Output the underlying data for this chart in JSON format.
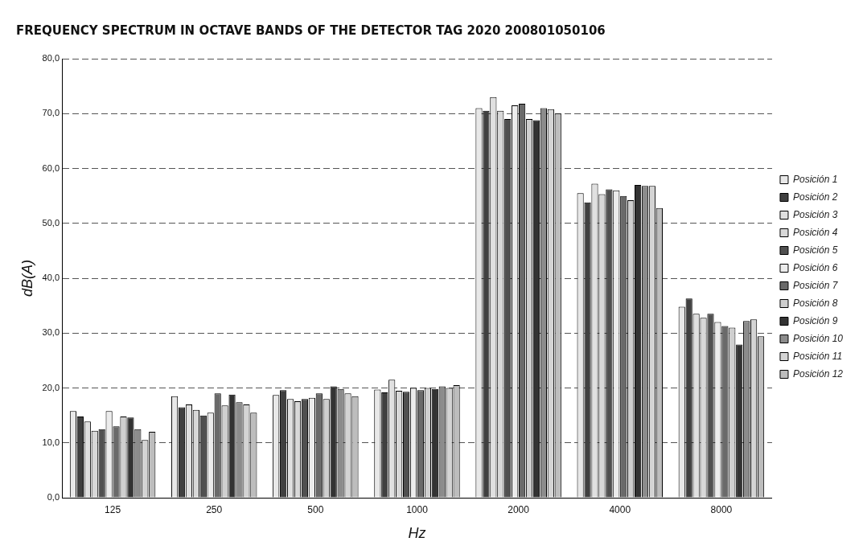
{
  "chart_data": {
    "type": "bar",
    "title": "FREQUENCY SPECTRUM IN OCTAVE BANDS OF THE DETECTOR TAG 2020 200801050106",
    "xlabel": "Hz",
    "ylabel": "dB(A)",
    "categories": [
      "125",
      "250",
      "500",
      "1000",
      "2000",
      "4000",
      "8000"
    ],
    "ylim": [
      0,
      80
    ],
    "yticks": [
      {
        "value": 0,
        "label": "0,0"
      },
      {
        "value": 10,
        "label": "10,0"
      },
      {
        "value": 20,
        "label": "20,0"
      },
      {
        "value": 30,
        "label": "30,0"
      },
      {
        "value": 40,
        "label": "40,0"
      },
      {
        "value": 50,
        "label": "50,0"
      },
      {
        "value": 60,
        "label": "60,0"
      },
      {
        "value": 70,
        "label": "70,0"
      },
      {
        "value": 80,
        "label": "80,0"
      }
    ],
    "grid": "y",
    "legend": "right",
    "series": [
      {
        "name": "Posición 1",
        "color": "#e8e8e8",
        "values": [
          15.8,
          18.5,
          18.7,
          19.7,
          71.0,
          55.5,
          34.8
        ]
      },
      {
        "name": "Posición 2",
        "color": "#404040",
        "values": [
          14.8,
          16.5,
          19.6,
          19.2,
          70.5,
          53.8,
          36.3
        ]
      },
      {
        "name": "Posición 3",
        "color": "#e0e0e0",
        "values": [
          13.9,
          17.0,
          18.0,
          21.5,
          73.0,
          57.2,
          33.5
        ]
      },
      {
        "name": "Posición 4",
        "color": "#d8d8d8",
        "values": [
          12.2,
          16.0,
          17.6,
          19.5,
          70.5,
          55.3,
          32.8
        ]
      },
      {
        "name": "Posición 5",
        "color": "#505050",
        "values": [
          12.5,
          15.0,
          18.0,
          19.3,
          69.0,
          56.2,
          33.5
        ]
      },
      {
        "name": "Posición 6",
        "color": "#ececec",
        "values": [
          15.8,
          15.5,
          18.2,
          20.0,
          71.5,
          56.0,
          32.0
        ]
      },
      {
        "name": "Posición 7",
        "color": "#6a6a6a",
        "values": [
          13.0,
          19.0,
          19.0,
          19.6,
          71.8,
          55.0,
          31.3
        ]
      },
      {
        "name": "Posición 8",
        "color": "#cfcfcf",
        "values": [
          14.8,
          16.8,
          18.0,
          20.0,
          69.0,
          54.2,
          31.0
        ]
      },
      {
        "name": "Posición 9",
        "color": "#333333",
        "values": [
          14.6,
          18.8,
          20.3,
          19.8,
          68.8,
          57.0,
          27.9
        ]
      },
      {
        "name": "Posición 10",
        "color": "#8c8c8c",
        "values": [
          12.5,
          17.4,
          19.8,
          20.3,
          71.0,
          56.8,
          32.2
        ]
      },
      {
        "name": "Posición 11",
        "color": "#d4d4d4",
        "values": [
          10.5,
          17.0,
          19.0,
          20.0,
          70.8,
          56.8,
          32.5
        ]
      },
      {
        "name": "Posición 12",
        "color": "#bdbdbd",
        "values": [
          12.0,
          15.5,
          18.5,
          20.5,
          70.0,
          52.8,
          29.4
        ]
      }
    ]
  }
}
